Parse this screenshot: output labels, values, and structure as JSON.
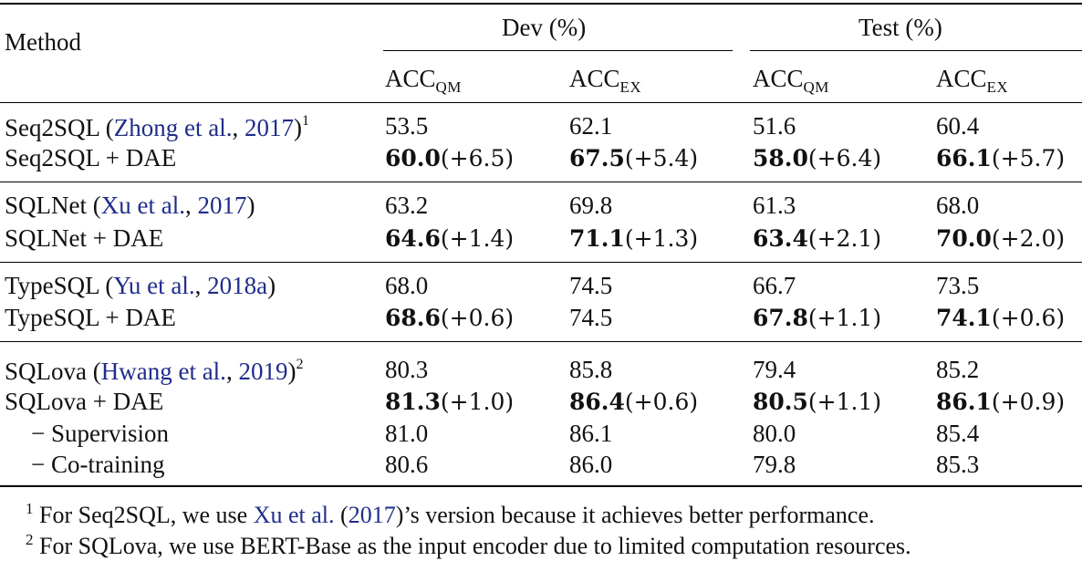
{
  "header": {
    "method": "Method",
    "dev": "Dev (%)",
    "test": "Test (%)",
    "acc": "ACC",
    "qm": "QM",
    "ex": "EX"
  },
  "rows": [
    {
      "pre": "Seq2SQL (",
      "cite_a": "Zhong et al.",
      "mid": ", ",
      "cite_b": "2017",
      "post": ")",
      "sup": "1",
      "dev_qm": "53.5",
      "dev_ex": "62.1",
      "test_qm": "51.6",
      "test_ex": "60.4"
    },
    {
      "label": "Seq2SQL + DAE",
      "dev_qm": "60.0",
      "dev_qm_d": "(+6.5)",
      "dev_ex": "67.5",
      "dev_ex_d": "(+5.4)",
      "test_qm": "58.0",
      "test_qm_d": "(+6.4)",
      "test_ex": "66.1",
      "test_ex_d": "(+5.7)"
    },
    {
      "pre": "SQLNet (",
      "cite_a": "Xu et al.",
      "mid": ", ",
      "cite_b": "2017",
      "post": ")",
      "dev_qm": "63.2",
      "dev_ex": "69.8",
      "test_qm": "61.3",
      "test_ex": "68.0"
    },
    {
      "label": "SQLNet + DAE",
      "dev_qm": "64.6",
      "dev_qm_d": "(+1.4)",
      "dev_ex": "71.1",
      "dev_ex_d": "(+1.3)",
      "test_qm": "63.4",
      "test_qm_d": "(+2.1)",
      "test_ex": "70.0",
      "test_ex_d": "(+2.0)"
    },
    {
      "pre": "TypeSQL (",
      "cite_a": "Yu et al.",
      "mid": ", ",
      "cite_b": "2018a",
      "post": ")",
      "dev_qm": "68.0",
      "dev_ex": "74.5",
      "test_qm": "66.7",
      "test_ex": "73.5"
    },
    {
      "label": "TypeSQL + DAE",
      "dev_qm": "68.6",
      "dev_qm_d": "(+0.6)",
      "dev_ex": "74.5",
      "test_qm": "67.8",
      "test_qm_d": "(+1.1)",
      "test_ex": "74.1",
      "test_ex_d": "(+0.6)"
    },
    {
      "pre": "SQLova (",
      "cite_a": "Hwang et al.",
      "mid": ", ",
      "cite_b": "2019",
      "post": ")",
      "sup": "2",
      "dev_qm": "80.3",
      "dev_ex": "85.8",
      "test_qm": "79.4",
      "test_ex": "85.2"
    },
    {
      "label": "SQLova + DAE",
      "dev_qm": "81.3",
      "dev_qm_d": "(+1.0)",
      "dev_ex": "86.4",
      "dev_ex_d": "(+0.6)",
      "test_qm": "80.5",
      "test_qm_d": "(+1.1)",
      "test_ex": "86.1",
      "test_ex_d": "(+0.9)"
    },
    {
      "label": "− Supervision",
      "dev_qm": "81.0",
      "dev_ex": "86.1",
      "test_qm": "80.0",
      "test_ex": "85.4"
    },
    {
      "label": "− Co-training",
      "dev_qm": "80.6",
      "dev_ex": "86.0",
      "test_qm": "79.8",
      "test_ex": "85.3"
    }
  ],
  "footnotes": [
    {
      "mark": "1",
      "pre": "For Seq2SQL, we use ",
      "cite_a": "Xu et al.",
      "mid": " (",
      "cite_b": "2017",
      "post": ")’s version because it achieves better performance."
    },
    {
      "mark": "2",
      "text": "For SQLova, we use BERT-Base as the input encoder due to limited computation resources."
    }
  ]
}
